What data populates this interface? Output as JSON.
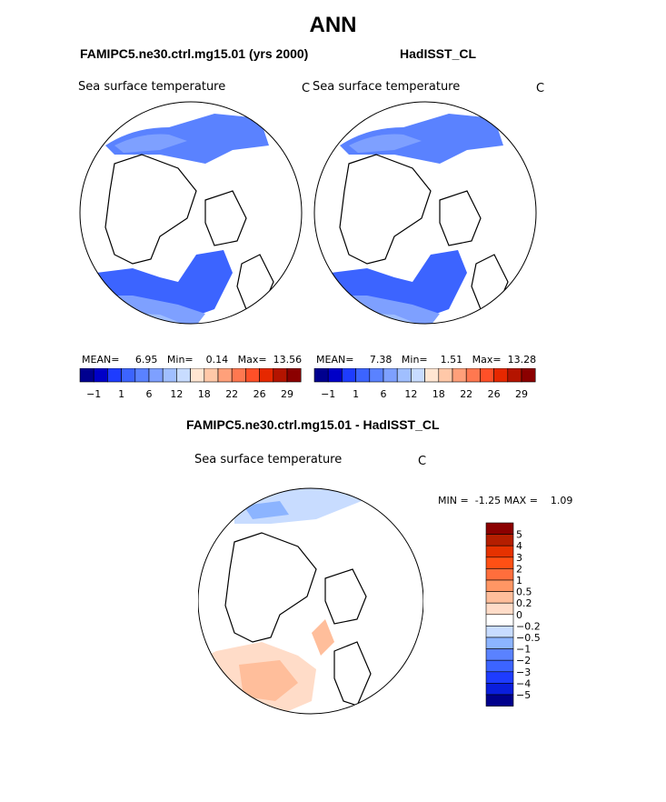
{
  "title": "ANN",
  "panels": [
    {
      "title": "FAMIPC5.ne30.ctrl.mg15.01 (yrs 2000)",
      "variable": "Sea surface temperature",
      "units": "C",
      "stats": {
        "mean_label": "MEAN=",
        "mean": "6.95",
        "min_label": "Min=",
        "min": "0.14",
        "max_label": "Max=",
        "max": "13.56"
      }
    },
    {
      "title": "HadISST_CL",
      "variable": "Sea surface temperature",
      "units": "C",
      "stats": {
        "mean_label": "MEAN=",
        "mean": "7.38",
        "min_label": "Min=",
        "min": "1.51",
        "max_label": "Max=",
        "max": "13.28"
      }
    },
    {
      "title": "FAMIPC5.ne30.ctrl.mg15.01 - HadISST_CL",
      "variable": "Sea surface temperature",
      "units": "C",
      "stats": {
        "min_label": "MIN =",
        "min": "-1.25",
        "max_label": "MAX =",
        "max": "1.09"
      }
    }
  ],
  "colorbar_abs": {
    "colors": [
      "#00008f",
      "#0000c8",
      "#1e3cff",
      "#3c64ff",
      "#5a82ff",
      "#7ea0ff",
      "#a0bfff",
      "#c8dcff",
      "#ffe6d2",
      "#ffc8a8",
      "#ffa07a",
      "#ff7850",
      "#ff5028",
      "#e62800",
      "#b41400",
      "#8b0000"
    ],
    "ticks": [
      "-1",
      "1",
      "6",
      "12",
      "18",
      "22",
      "26",
      "29"
    ]
  },
  "colorbar_diff": {
    "colors": [
      "#00008b",
      "#0a1edc",
      "#1e3cff",
      "#3c64ff",
      "#5a82ff",
      "#8cb4ff",
      "#c8dcff",
      "#ffffff",
      "#ffdcc8",
      "#ffbe9b",
      "#ff9664",
      "#ff6e3c",
      "#ff5014",
      "#e63200",
      "#b41e00",
      "#8b0000"
    ],
    "labels": [
      "5",
      "4",
      "3",
      "2",
      "1",
      "0.5",
      "0.2",
      "0",
      "-0.2",
      "-0.5",
      "-1",
      "-2",
      "-3",
      "-4",
      "-5"
    ]
  }
}
